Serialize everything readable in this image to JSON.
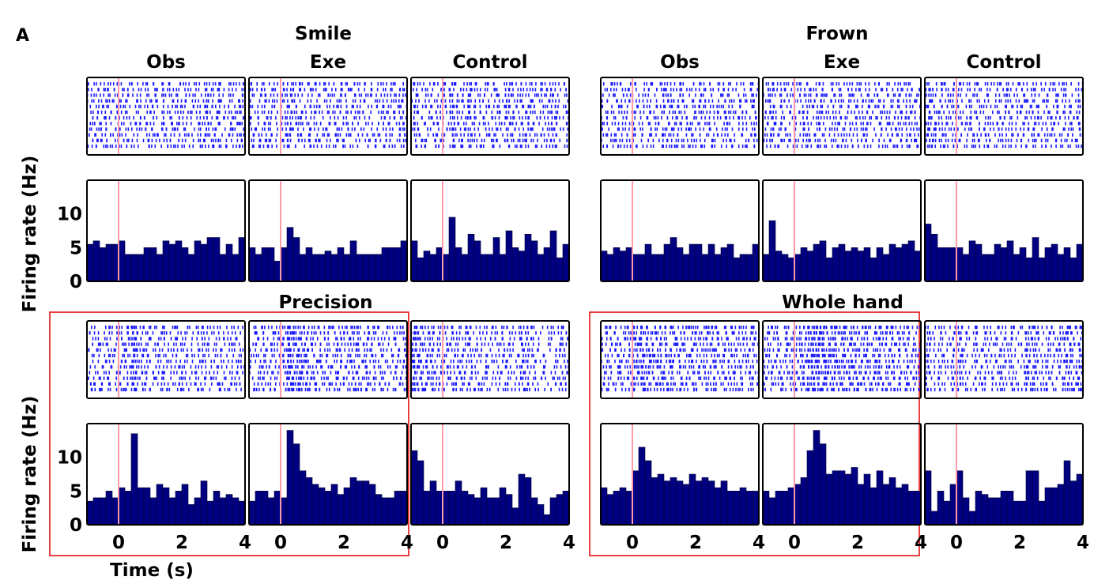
{
  "figure": {
    "panel_label": "A",
    "group_titles": {
      "left_top": "Smile",
      "right_top": "Frown",
      "left_bottom": "Precision",
      "right_bottom": "Whole hand"
    },
    "ylabel": "Firing rate (Hz)",
    "xlabel": "Time (s)",
    "colors": {
      "bar_fill": "#000080",
      "raster_tick": "#1a1aff",
      "event_line": "#ff9aa8",
      "highlight_box": "#e00000"
    }
  },
  "chart_data": {
    "type": "bar",
    "xlim": [
      -1,
      4
    ],
    "ylim": [
      0,
      15
    ],
    "xticks": [
      "0",
      "2",
      "4"
    ],
    "yticks": [
      "0",
      "5",
      "10"
    ],
    "event_time": 0,
    "bin_width_s": 0.2,
    "bin_centers_s": [
      -0.9,
      -0.7,
      -0.5,
      -0.3,
      -0.1,
      0.1,
      0.3,
      0.5,
      0.7,
      0.9,
      1.1,
      1.3,
      1.5,
      1.7,
      1.9,
      2.1,
      2.3,
      2.5,
      2.7,
      2.9,
      3.1,
      3.3,
      3.5,
      3.7,
      3.9
    ],
    "panels": [
      {
        "group": "Smile",
        "condition": "Obs",
        "title": "Obs",
        "values": [
          5.5,
          6,
          5,
          5.5,
          5.5,
          6,
          4,
          4,
          4,
          5,
          5,
          4,
          6,
          5.5,
          6,
          5,
          4,
          6,
          5.5,
          6.5,
          6.5,
          4,
          5.5,
          4,
          6.5
        ]
      },
      {
        "group": "Smile",
        "condition": "Exe",
        "title": "Exe",
        "values": [
          5,
          4,
          5,
          5,
          3,
          5,
          8,
          6.5,
          4,
          5,
          4,
          4,
          4.5,
          4,
          5,
          4,
          6,
          4,
          4,
          4,
          4,
          5,
          5,
          5,
          6
        ]
      },
      {
        "group": "Smile",
        "condition": "Control",
        "title": "Control",
        "values": [
          6,
          3.5,
          4.5,
          4,
          5,
          4,
          9.5,
          5,
          4,
          7,
          6,
          4,
          4,
          6.5,
          4,
          7.5,
          5,
          4.5,
          7,
          6,
          4,
          5,
          7.5,
          3.5,
          5.5
        ]
      },
      {
        "group": "Frown",
        "condition": "Obs",
        "title": "Obs",
        "values": [
          4.5,
          4,
          5,
          4.5,
          5,
          4,
          4,
          5.5,
          4,
          4,
          5.5,
          6.5,
          5,
          4,
          5.5,
          5.5,
          4,
          5.5,
          4,
          5,
          5.5,
          3.5,
          4,
          4,
          5.5
        ]
      },
      {
        "group": "Frown",
        "condition": "Exe",
        "title": "Exe",
        "values": [
          4,
          9,
          4.5,
          4,
          3.5,
          4,
          5,
          4.5,
          5.5,
          6,
          3.5,
          5,
          5.5,
          4.5,
          5,
          4.5,
          5,
          3.5,
          5,
          4,
          5.5,
          5,
          5.5,
          6,
          4.5
        ]
      },
      {
        "group": "Frown",
        "condition": "Control",
        "title": "Control",
        "values": [
          8.5,
          7,
          5,
          5,
          5,
          5,
          4,
          6,
          5.5,
          4,
          4,
          5.5,
          5,
          6,
          4,
          5,
          3.5,
          6.5,
          3.5,
          5,
          5.5,
          4,
          5,
          3.5,
          5.5
        ]
      },
      {
        "group": "Precision",
        "condition": "Obs",
        "title": "",
        "values": [
          3.5,
          4,
          4,
          5,
          4,
          5.5,
          5,
          13.5,
          5.5,
          5.5,
          4,
          6,
          5.5,
          4,
          5,
          6,
          3,
          4,
          6.5,
          3.5,
          5,
          4,
          4.5,
          4,
          3.5
        ]
      },
      {
        "group": "Precision",
        "condition": "Exe",
        "title": "",
        "values": [
          3.5,
          5,
          5,
          4,
          5,
          4,
          14,
          12,
          8,
          7,
          6,
          5.5,
          5,
          6,
          4.5,
          5.5,
          7,
          6.5,
          6.5,
          6,
          4.5,
          4,
          4,
          5,
          5
        ]
      },
      {
        "group": "Precision",
        "condition": "Control",
        "title": "",
        "values": [
          11,
          9.5,
          5,
          6.5,
          5,
          5,
          5,
          6.5,
          5,
          4.5,
          4,
          5.5,
          4,
          4,
          5.5,
          4.5,
          2.5,
          7.5,
          7,
          4,
          3,
          1.5,
          4,
          4.5,
          5
        ]
      },
      {
        "group": "Whole hand",
        "condition": "Obs",
        "title": "",
        "values": [
          5.5,
          4.5,
          5,
          5.5,
          5,
          8,
          11.5,
          9.5,
          7,
          7.5,
          6.5,
          7,
          6.5,
          6,
          7.5,
          6.5,
          7,
          6.5,
          5.5,
          6.5,
          5,
          5,
          5.5,
          5,
          5
        ]
      },
      {
        "group": "Whole hand",
        "condition": "Exe",
        "title": "",
        "values": [
          5,
          4,
          5,
          5,
          5.5,
          6,
          7,
          11,
          14,
          12,
          7.5,
          8,
          8,
          7.5,
          8.5,
          6,
          7.5,
          5.5,
          8,
          6,
          7,
          5.5,
          6,
          5,
          5
        ]
      },
      {
        "group": "Whole hand",
        "condition": "Control",
        "title": "",
        "values": [
          8,
          2,
          5,
          3.5,
          6,
          8,
          4,
          2,
          5,
          4.5,
          4,
          4,
          5,
          5,
          3.5,
          3.5,
          8,
          8,
          3.5,
          5.5,
          5.5,
          6,
          9.5,
          6.5,
          7.5
        ]
      }
    ]
  }
}
